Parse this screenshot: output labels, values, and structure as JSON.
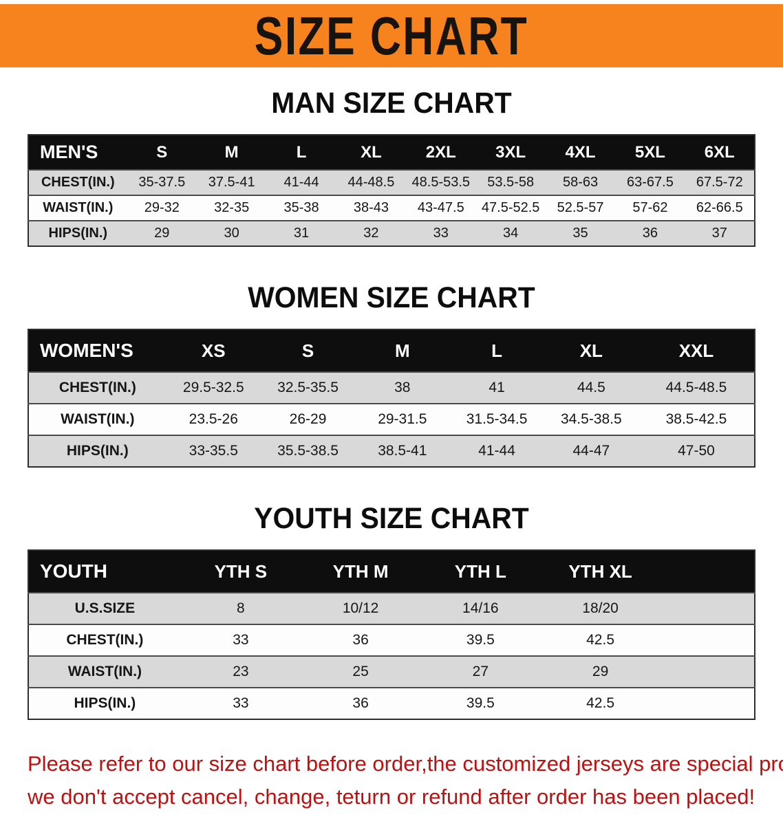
{
  "banner": {
    "title": "SIZE CHART",
    "bg_color": "#f6831d",
    "text_color": "#17130e"
  },
  "colors": {
    "table_header_bg": "#0e0e0e",
    "row_alt_bg": "#d9d9d9",
    "disclaimer_red": "#bf1010"
  },
  "sections": [
    {
      "heading": "MAN SIZE CHART",
      "table": {
        "header": [
          "MEN'S",
          "S",
          "M",
          "L",
          "XL",
          "2XL",
          "3XL",
          "4XL",
          "5XL",
          "6XL"
        ],
        "rows": [
          [
            "CHEST(IN.)",
            "35-37.5",
            "37.5-41",
            "41-44",
            "44-48.5",
            "48.5-53.5",
            "53.5-58",
            "58-63",
            "63-67.5",
            "67.5-72"
          ],
          [
            "WAIST(IN.)",
            "29-32",
            "32-35",
            "35-38",
            "38-43",
            "43-47.5",
            "47.5-52.5",
            "52.5-57",
            "57-62",
            "62-66.5"
          ],
          [
            "HIPS(IN.)",
            "29",
            "30",
            "31",
            "32",
            "33",
            "34",
            "35",
            "36",
            "37"
          ]
        ]
      }
    },
    {
      "heading": "WOMEN SIZE CHART",
      "table": {
        "header": [
          "WOMEN'S",
          "XS",
          "S",
          "M",
          "L",
          "XL",
          "XXL"
        ],
        "rows": [
          [
            "CHEST(IN.)",
            "29.5-32.5",
            "32.5-35.5",
            "38",
            "41",
            "44.5",
            "44.5-48.5"
          ],
          [
            "WAIST(IN.)",
            "23.5-26",
            "26-29",
            "29-31.5",
            "31.5-34.5",
            "34.5-38.5",
            "38.5-42.5"
          ],
          [
            "HIPS(IN.)",
            "33-35.5",
            "35.5-38.5",
            "38.5-41",
            "41-44",
            "44-47",
            "47-50"
          ]
        ]
      }
    },
    {
      "heading": "YOUTH SIZE CHART",
      "table": {
        "header": [
          "YOUTH",
          "YTH S",
          "YTH M",
          "YTH L",
          "YTH XL"
        ],
        "rows": [
          [
            "U.S.SIZE",
            "8",
            "10/12",
            "14/16",
            "18/20"
          ],
          [
            "CHEST(IN.)",
            "33",
            "36",
            "39.5",
            "42.5"
          ],
          [
            "WAIST(IN.)",
            "23",
            "25",
            "27",
            "29"
          ],
          [
            "HIPS(IN.)",
            "33",
            "36",
            "39.5",
            "42.5"
          ]
        ]
      }
    }
  ],
  "footer": {
    "line1": "Please refer to our size chart before order,the customized jerseys are special products,",
    "line2": "we don't accept cancel, change, teturn or refund after order has been placed!"
  }
}
